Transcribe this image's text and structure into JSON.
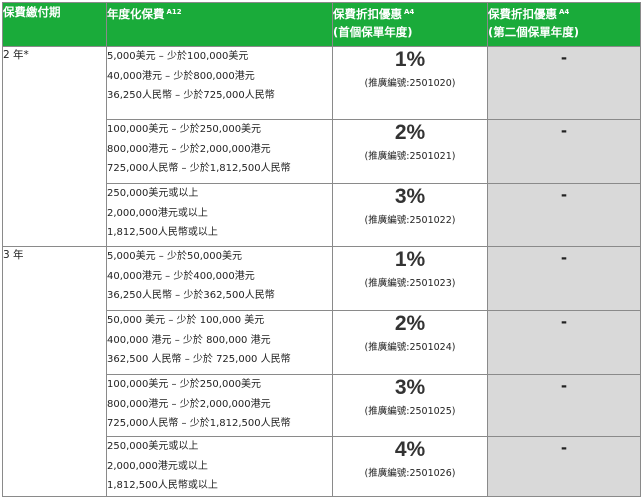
{
  "header": {
    "col1": "保費繳付期",
    "col2": "年度化保費",
    "col2_sup": "A12",
    "col3_line1": "保費折扣優惠",
    "col3_sup": "A4",
    "col3_line2": "(首個保單年度)",
    "col4_line1": "保費折扣優惠",
    "col4_sup": "A4",
    "col4_line2": "(第二個保單年度)"
  },
  "rows": [
    {
      "term": "2 年*",
      "premium_lines": [
        "5,000美元 – 少於100,000美元",
        "40,000港元 – 少於800,000港元",
        "36,250人民幣 – 少於725,000人民幣"
      ],
      "rate": "1%",
      "promo": "(推廣編號:2501020)",
      "second": "-"
    },
    {
      "term": "",
      "premium_lines": [
        "100,000美元 – 少於250,000美元",
        "800,000港元 – 少於2,000,000港元",
        "725,000人民幣 – 少於1,812,500人民幣"
      ],
      "rate": "2%",
      "promo": "(推廣編號:2501021)",
      "second": "-"
    },
    {
      "term": "",
      "premium_lines": [
        "250,000美元或以上",
        "2,000,000港元或以上",
        "1,812,500人民幣或以上"
      ],
      "rate": "3%",
      "promo": "(推廣編號:2501022)",
      "second": "-"
    },
    {
      "term": "3 年",
      "premium_lines": [
        "5,000美元 – 少於50,000美元",
        "40,000港元 – 少於400,000港元",
        "36,250人民幣 – 少於362,500人民幣"
      ],
      "rate": "1%",
      "promo": "(推廣編號:2501023)",
      "second": "-"
    },
    {
      "term": "",
      "premium_lines": [
        "50,000 美元 – 少於 100,000 美元",
        "400,000 港元 – 少於 800,000 港元",
        "362,500 人民幣 – 少於 725,000 人民幣"
      ],
      "rate": "2%",
      "promo": "(推廣編號:2501024)",
      "second": "-"
    },
    {
      "term": "",
      "premium_lines": [
        "100,000美元 – 少於250,000美元",
        "800,000港元 – 少於2,000,000港元",
        "725,000人民幣 – 少於1,812,500人民幣"
      ],
      "rate": "3%",
      "promo": "(推廣編號:2501025)",
      "second": "-"
    },
    {
      "term": "",
      "premium_lines": [
        "250,000美元或以上",
        "2,000,000港元或以上",
        "1,812,500人民幣或以上"
      ],
      "rate": "4%",
      "promo": "(推廣編號:2501026)",
      "second": "-"
    }
  ],
  "colors": {
    "header_green": "#1aab3a",
    "second_year_gray": "#d9d9d9",
    "border": "#8a8a8a"
  }
}
